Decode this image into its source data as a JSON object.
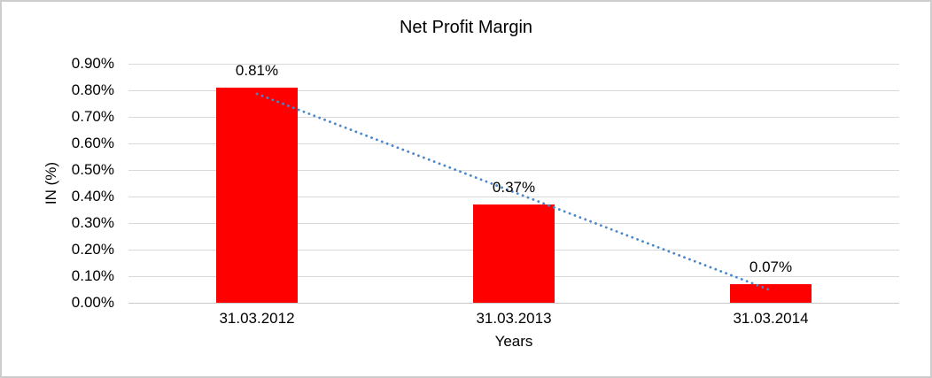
{
  "chart_data": {
    "type": "bar",
    "title": "Net Profit Margin",
    "xlabel": "Years",
    "ylabel": "IN (%)",
    "categories": [
      "31.03.2012",
      "31.03.2013",
      "31.03.2014"
    ],
    "series": [
      {
        "name": "Net Profit Margin",
        "color": "#ff0000",
        "values": [
          0.81,
          0.37,
          0.07
        ],
        "data_labels": [
          "0.81%",
          "0.37%",
          "0.07%"
        ]
      }
    ],
    "y_axis": {
      "min": 0,
      "max": 0.9,
      "step": 0.1,
      "tick_labels": [
        "0.00%",
        "0.10%",
        "0.20%",
        "0.30%",
        "0.40%",
        "0.50%",
        "0.60%",
        "0.70%",
        "0.80%",
        "0.90%"
      ]
    },
    "ylim": [
      0,
      0.9
    ],
    "grid": true,
    "legend": "none",
    "gridline_color": "#d9d9d9",
    "axis_line_color": "#c9c9c9",
    "text_color": "#000000",
    "trendline": {
      "type": "linear",
      "style": "dotted",
      "color": "#4a86c8"
    }
  }
}
